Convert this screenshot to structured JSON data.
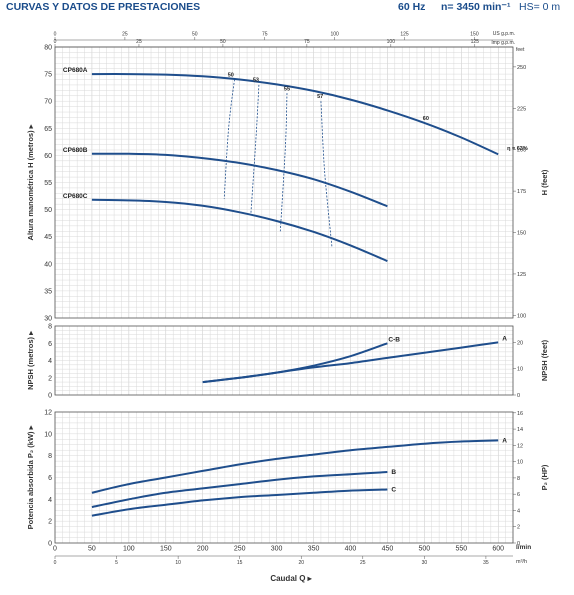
{
  "header": {
    "title": "CURVAS Y DATOS DE PRESTACIONES",
    "frequency": "60 Hz",
    "speed": "n= 3450 min⁻¹",
    "hs": "HS= 0 m"
  },
  "chart_data": [
    {
      "type": "line",
      "ylabel": "Altura manométrica H (metros) ▸",
      "y2label": "H (feet)",
      "xlim": [
        0,
        620
      ],
      "ylim": [
        30,
        80
      ],
      "y_ticks": [
        30,
        35,
        40,
        45,
        50,
        55,
        60,
        65,
        70,
        75,
        80
      ],
      "y2_ticks": [
        100,
        125,
        150,
        175,
        200,
        225,
        250
      ],
      "y2_unit": "feet",
      "top_axis_usgpm": {
        "label": "US g.p.m.",
        "ticks": [
          0,
          25,
          50,
          75,
          100,
          125,
          150
        ]
      },
      "top_axis_impgpm": {
        "label": "Imp g.p.m.",
        "ticks": [
          0,
          25,
          50,
          75,
          100,
          125
        ]
      },
      "series": [
        {
          "name": "CP680A",
          "x": [
            50,
            100,
            150,
            200,
            250,
            300,
            350,
            400,
            450,
            500,
            550,
            600
          ],
          "values": [
            75,
            75,
            74.9,
            74.6,
            74,
            73.1,
            71.9,
            70.3,
            68.3,
            66,
            63.3,
            60.2
          ]
        },
        {
          "name": "CP680B",
          "x": [
            50,
            100,
            150,
            200,
            250,
            300,
            350,
            400,
            450
          ],
          "values": [
            60.3,
            60.3,
            60.1,
            59.5,
            58.6,
            57.3,
            55.6,
            53.3,
            50.6
          ]
        },
        {
          "name": "CP680C",
          "x": [
            50,
            100,
            150,
            200,
            250,
            300,
            350,
            400,
            450
          ],
          "values": [
            51.8,
            51.7,
            51.4,
            50.7,
            49.5,
            47.9,
            45.9,
            43.4,
            40.5
          ]
        }
      ],
      "efficiency_labels": [
        "50",
        "53",
        "55",
        "57",
        "60",
        "η = 63%"
      ],
      "efficiency_lines": [
        {
          "label": "50",
          "x": [
            243,
            235,
            229
          ],
          "values": [
            74,
            65,
            52
          ]
        },
        {
          "label": "53",
          "x": [
            276,
            272,
            265
          ],
          "values": [
            73,
            63,
            49
          ]
        },
        {
          "label": "55",
          "x": [
            314,
            312,
            305
          ],
          "values": [
            71.5,
            62,
            46
          ]
        },
        {
          "label": "57",
          "x": [
            360,
            365,
            375
          ],
          "values": [
            70,
            57,
            43
          ]
        }
      ]
    },
    {
      "type": "line",
      "ylabel": "NPSH (metros) ▸",
      "y2label": "NPSH (feet)",
      "xlim": [
        0,
        620
      ],
      "ylim": [
        0,
        8
      ],
      "y_ticks": [
        0,
        2,
        4,
        6,
        8
      ],
      "y2_ticks": [
        0,
        10,
        20
      ],
      "series": [
        {
          "name": "C-B",
          "x": [
            200,
            250,
            300,
            350,
            400,
            450
          ],
          "values": [
            1.5,
            2.0,
            2.6,
            3.4,
            4.5,
            6.0
          ]
        },
        {
          "name": "A",
          "x": [
            200,
            250,
            300,
            350,
            400,
            450,
            500,
            550,
            600
          ],
          "values": [
            1.5,
            2.0,
            2.6,
            3.2,
            3.7,
            4.3,
            4.9,
            5.5,
            6.1
          ]
        }
      ]
    },
    {
      "type": "line",
      "ylabel": "Potencia absorbida P₂ (kW) ▸",
      "y2label": "P₂ (HP)",
      "xlabel": "Caudal Q ▸",
      "xlim": [
        0,
        620
      ],
      "ylim": [
        0,
        12
      ],
      "x_ticks": [
        0,
        50,
        100,
        150,
        200,
        250,
        300,
        350,
        400,
        450,
        500,
        550,
        600
      ],
      "x_unit": "l/min",
      "x2_unit": "m³/h",
      "x2_ticks": [
        0,
        5,
        10,
        15,
        20,
        25,
        30,
        35
      ],
      "y_ticks": [
        0,
        2,
        4,
        6,
        8,
        10,
        12
      ],
      "y2_ticks": [
        0,
        2,
        4,
        6,
        8,
        10,
        12,
        14,
        16
      ],
      "series": [
        {
          "name": "A",
          "x": [
            50,
            100,
            150,
            200,
            250,
            300,
            350,
            400,
            450,
            500,
            550,
            600
          ],
          "values": [
            4.6,
            5.4,
            6.0,
            6.6,
            7.2,
            7.7,
            8.1,
            8.5,
            8.8,
            9.1,
            9.3,
            9.4
          ]
        },
        {
          "name": "B",
          "x": [
            50,
            100,
            150,
            200,
            250,
            300,
            350,
            400,
            450
          ],
          "values": [
            3.3,
            4.0,
            4.6,
            5.0,
            5.4,
            5.8,
            6.1,
            6.3,
            6.5
          ]
        },
        {
          "name": "C",
          "x": [
            50,
            100,
            150,
            200,
            250,
            300,
            350,
            400,
            450
          ],
          "values": [
            2.5,
            3.1,
            3.5,
            3.9,
            4.2,
            4.4,
            4.6,
            4.8,
            4.9
          ]
        }
      ]
    }
  ]
}
